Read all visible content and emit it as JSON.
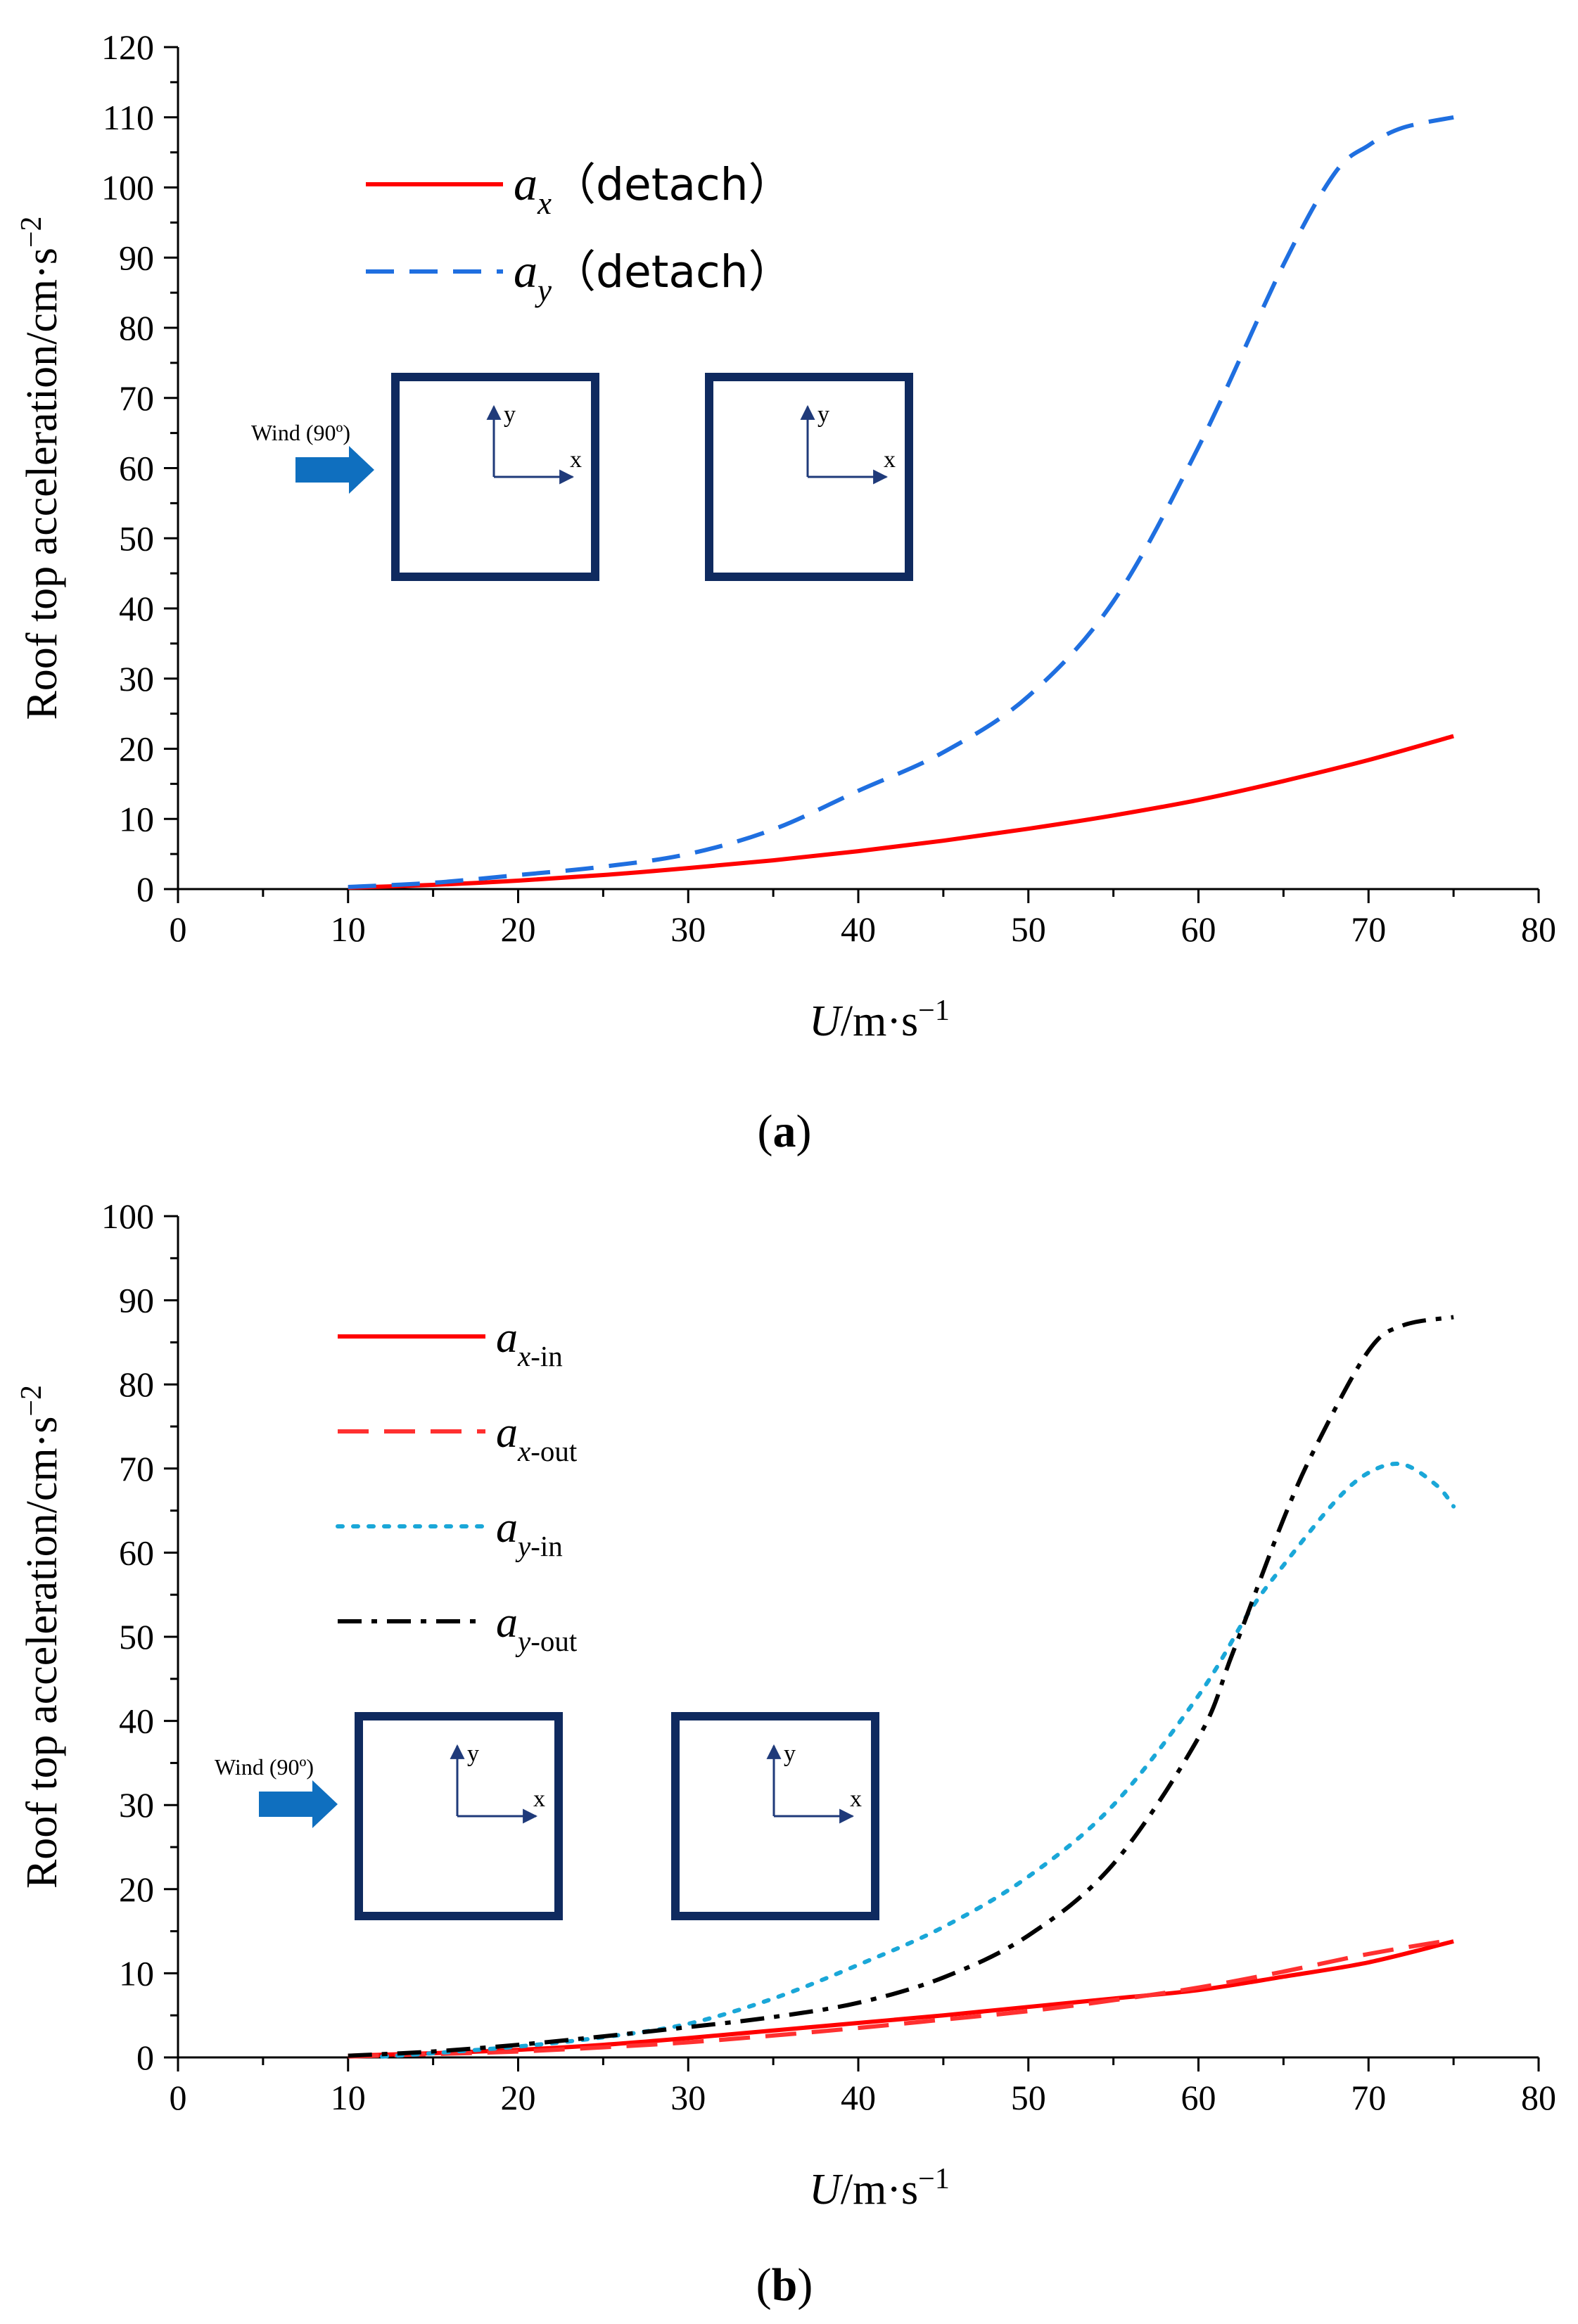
{
  "chart_data": [
    {
      "panel": "a",
      "type": "line",
      "caption_letter": "a",
      "ylabel": "Roof top acceleration/cm·s",
      "ylabel_exp": "−2",
      "xlabel_var": "U",
      "xlabel_unit": "/m·s",
      "xlabel_exp": "−1",
      "xlim": [
        0,
        80
      ],
      "ylim": [
        0,
        120
      ],
      "xticks": [
        "0",
        "10",
        "20",
        "30",
        "40",
        "50",
        "60",
        "70",
        "80"
      ],
      "yticks": [
        "0",
        "10",
        "20",
        "30",
        "40",
        "50",
        "60",
        "70",
        "80",
        "90",
        "100",
        "110",
        "120"
      ],
      "inset": {
        "wind_label": "Wind (90º)",
        "axis_x": "x",
        "axis_y": "y"
      },
      "series": [
        {
          "var": "a",
          "sub": "x",
          "suffix": "（detach）",
          "color": "#ff0000",
          "dash": "solid",
          "x": [
            10,
            15,
            20,
            25,
            30,
            35,
            40,
            45,
            50,
            55,
            60,
            65,
            70,
            75
          ],
          "y": [
            0.2,
            0.6,
            1.2,
            2.0,
            3.0,
            4.1,
            5.4,
            6.9,
            8.6,
            10.5,
            12.7,
            15.4,
            18.4,
            21.8
          ]
        },
        {
          "var": "a",
          "sub": "y",
          "suffix": "（detach）",
          "color": "#1f6fe0",
          "dash": "dashed",
          "x": [
            10,
            15,
            20,
            25,
            30,
            35,
            40,
            45,
            50,
            55,
            60,
            65,
            68,
            70,
            72,
            75
          ],
          "y": [
            0.3,
            0.9,
            2.0,
            3.2,
            5.0,
            8.5,
            14.0,
            19.5,
            27.5,
            41.0,
            63.0,
            89.0,
            102.0,
            106.0,
            108.5,
            110.0
          ]
        }
      ]
    },
    {
      "panel": "b",
      "type": "line",
      "caption_letter": "b",
      "ylabel": "Roof top acceleration/cm·s",
      "ylabel_exp": "−2",
      "xlabel_var": "U",
      "xlabel_unit": "/m·s",
      "xlabel_exp": "−1",
      "xlim": [
        0,
        80
      ],
      "ylim": [
        0,
        100
      ],
      "xticks": [
        "0",
        "10",
        "20",
        "30",
        "40",
        "50",
        "60",
        "70",
        "80"
      ],
      "yticks": [
        "0",
        "10",
        "20",
        "30",
        "40",
        "50",
        "60",
        "70",
        "80",
        "90",
        "100"
      ],
      "inset": {
        "wind_label": "Wind (90º)",
        "axis_x": "x",
        "axis_y": "y"
      },
      "series": [
        {
          "var": "a",
          "sub": "x",
          "suffix": "-in",
          "color": "#ff0000",
          "dash": "solid",
          "x": [
            10,
            15,
            20,
            25,
            30,
            35,
            40,
            45,
            50,
            55,
            60,
            65,
            70,
            75
          ],
          "y": [
            0.2,
            0.5,
            0.9,
            1.5,
            2.3,
            3.2,
            4.1,
            5.0,
            6.0,
            7.0,
            8.0,
            9.6,
            11.3,
            13.8
          ]
        },
        {
          "var": "a",
          "sub": "x",
          "suffix": "-out",
          "color": "#ff3030",
          "dash": "longdash",
          "x": [
            10,
            15,
            20,
            25,
            30,
            35,
            40,
            45,
            50,
            55,
            60,
            65,
            70,
            75
          ],
          "y": [
            0.1,
            0.4,
            0.7,
            1.2,
            1.8,
            2.6,
            3.5,
            4.5,
            5.5,
            6.8,
            8.3,
            10.2,
            12.3,
            14.0
          ]
        },
        {
          "var": "a",
          "sub": "y",
          "suffix": "-in",
          "color": "#1aa7d8",
          "dash": "dotted",
          "x": [
            12,
            15,
            20,
            25,
            30,
            35,
            40,
            45,
            50,
            55,
            60,
            63,
            65,
            68,
            70,
            72,
            74,
            75
          ],
          "y": [
            0.1,
            0.5,
            1.3,
            2.4,
            4.0,
            7.0,
            11.0,
            15.5,
            21.5,
            30.0,
            43.0,
            53.0,
            58.5,
            66.0,
            69.5,
            70.5,
            68.0,
            65.5
          ]
        },
        {
          "var": "a",
          "sub": "y",
          "suffix": "-out",
          "color": "#000000",
          "dash": "dashdot",
          "x": [
            10,
            15,
            20,
            25,
            30,
            35,
            40,
            45,
            50,
            55,
            60,
            62,
            65,
            67,
            70,
            72,
            75
          ],
          "y": [
            0.2,
            0.7,
            1.5,
            2.5,
            3.6,
            4.8,
            6.5,
            9.5,
            14.5,
            23.0,
            38.0,
            48.0,
            64.0,
            73.0,
            84.0,
            87.0,
            88.0
          ]
        }
      ]
    }
  ]
}
